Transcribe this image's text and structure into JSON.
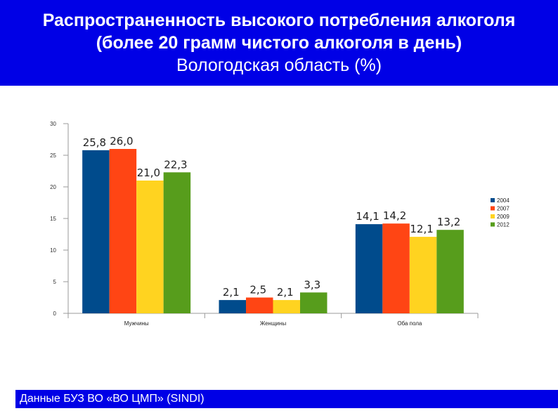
{
  "header": {
    "line1": "Распространенность высокого потребления алкоголя",
    "line2": "(более 20 грамм чистого алкоголя в день)",
    "line3": "Вологодская область (%)"
  },
  "footer": {
    "source": "Данные БУЗ ВО «ВО ЦМП» (SINDI)"
  },
  "colors": {
    "header_bg": "#0000e6",
    "series": [
      "#004b8c",
      "#ff4514",
      "#ffd320",
      "#579d1c"
    ]
  },
  "chart_data": {
    "type": "bar",
    "title": "",
    "xlabel": "",
    "ylabel": "",
    "categories": [
      "Мужчины",
      "Женщины",
      "Оба пола"
    ],
    "series": [
      {
        "name": "2004",
        "values": [
          25.8,
          2.1,
          14.1
        ],
        "labels": [
          "25,8",
          "2,1",
          "14,1"
        ]
      },
      {
        "name": "2007",
        "values": [
          26.0,
          2.5,
          14.2
        ],
        "labels": [
          "26,0",
          "2,5",
          "14,2"
        ]
      },
      {
        "name": "2009",
        "values": [
          21.0,
          2.1,
          12.1
        ],
        "labels": [
          "21,0",
          "2,1",
          "12,1"
        ]
      },
      {
        "name": "2012",
        "values": [
          22.3,
          3.3,
          13.2
        ],
        "labels": [
          "22,3",
          "3,3",
          "13,2"
        ]
      }
    ],
    "ylim": [
      0,
      30
    ],
    "yticks": [
      0,
      5,
      10,
      15,
      20,
      25,
      30
    ],
    "grid": false,
    "legend": "right"
  }
}
